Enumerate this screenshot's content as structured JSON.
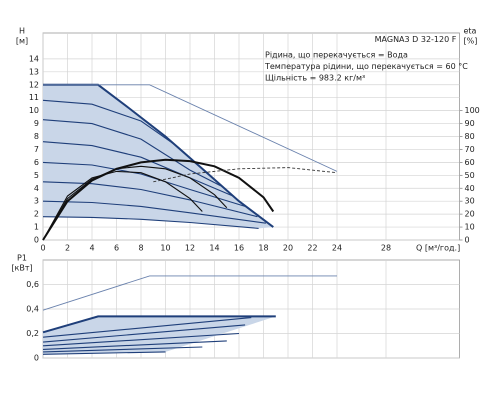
{
  "chart_data": [
    {
      "type": "line",
      "title": "MAGNA3 D 32-120 F",
      "notes": [
        "Рідина, що перекачується = Вода",
        "Температура рідини, що перекачується = 60 °C",
        "Щільність = 983.2 кг/м³"
      ],
      "ylabel": "H",
      "yunit": "[м]",
      "y2label": "eta",
      "y2unit": "[%]",
      "xlabel": "Q [м³/год.]",
      "xlim": [
        0,
        34
      ],
      "xticks": [
        0,
        2,
        4,
        6,
        8,
        10,
        12,
        14,
        16,
        18,
        20,
        22,
        24,
        28
      ],
      "ylim": [
        0,
        16
      ],
      "yticks": [
        0,
        1,
        2,
        3,
        4,
        5,
        6,
        7,
        8,
        9,
        10,
        11,
        12,
        13,
        14
      ],
      "y2lim": [
        0,
        160
      ],
      "y2ticks": [
        0,
        10,
        20,
        30,
        40,
        50,
        60,
        70,
        80,
        90,
        100
      ],
      "grid": true,
      "area_color": "#c9d6e8",
      "series": [
        {
          "color": "#1f3f7a",
          "style": "thick",
          "area": true,
          "x": [
            0,
            4.5,
            7,
            10,
            13,
            16,
            18.8
          ],
          "values": [
            12,
            12,
            10.2,
            8,
            5.5,
            3,
            1
          ]
        },
        {
          "color": "#6a82ad",
          "style": "thin",
          "x": [
            0,
            8.7,
            24
          ],
          "values": [
            12,
            12,
            5.3
          ]
        },
        {
          "color": "#1f3f7a",
          "style": "normal",
          "x": [
            0,
            4,
            8,
            11,
            13.5
          ],
          "values": [
            10.8,
            10.5,
            9.2,
            7.2,
            5.1
          ]
        },
        {
          "color": "#1f3f7a",
          "style": "normal",
          "x": [
            0,
            4,
            8,
            12,
            14.5
          ],
          "values": [
            9.3,
            9,
            7.8,
            5.4,
            4.2
          ]
        },
        {
          "color": "#1f3f7a",
          "style": "normal",
          "x": [
            0,
            4,
            8,
            12,
            15.5
          ],
          "values": [
            7.6,
            7.3,
            6.4,
            4.8,
            3.4
          ]
        },
        {
          "color": "#1f3f7a",
          "style": "normal",
          "x": [
            0,
            4,
            8,
            12,
            16.5
          ],
          "values": [
            6,
            5.8,
            5.1,
            3.9,
            2.6
          ]
        },
        {
          "color": "#1f3f7a",
          "style": "normal",
          "x": [
            0,
            4,
            8,
            12,
            17.5
          ],
          "values": [
            4.5,
            4.35,
            3.9,
            3.1,
            1.8
          ]
        },
        {
          "color": "#1f3f7a",
          "style": "normal",
          "x": [
            0,
            4,
            8,
            12,
            18.2
          ],
          "values": [
            3,
            2.9,
            2.6,
            2.1,
            1.3
          ]
        },
        {
          "color": "#1f3f7a",
          "style": "normal",
          "area_base": true,
          "x": [
            0,
            4,
            8,
            12,
            17.6
          ],
          "values": [
            1.8,
            1.75,
            1.6,
            1.35,
            0.9
          ]
        },
        {
          "color": "#111111",
          "style": "thick",
          "axis": "y2",
          "x": [
            0,
            2,
            4,
            6,
            8,
            10,
            12,
            14,
            16,
            18,
            18.8
          ],
          "values": [
            0,
            30,
            46,
            55,
            60,
            62,
            61,
            57,
            48,
            33,
            22
          ]
        },
        {
          "color": "#111111",
          "style": "normal",
          "axis": "y2",
          "x": [
            0,
            2,
            4,
            6,
            8,
            10,
            12,
            14,
            15
          ],
          "values": [
            0,
            32,
            47,
            55,
            57,
            55,
            48,
            35,
            25
          ]
        },
        {
          "color": "#111111",
          "style": "normal",
          "axis": "y2",
          "x": [
            0,
            2,
            4,
            6,
            8,
            10,
            12,
            13
          ],
          "values": [
            0,
            34,
            48,
            53,
            52,
            45,
            32,
            22
          ]
        },
        {
          "color": "#333333",
          "style": "dashed",
          "axis": "y2",
          "x": [
            9,
            12,
            16,
            20,
            24
          ],
          "values": [
            45,
            51,
            55,
            56,
            52
          ]
        }
      ]
    },
    {
      "type": "line",
      "ylabel": "P1",
      "yunit": "[кВт]",
      "xlim": [
        0,
        34
      ],
      "xticks": [
        0,
        2,
        4,
        6,
        8,
        10,
        12,
        14,
        16,
        18,
        20,
        22,
        24,
        28
      ],
      "ylim": [
        0,
        0.8
      ],
      "yticks": [
        0,
        {
          "value": 0.2,
          "label": "0,2"
        },
        {
          "value": 0.4,
          "label": "0,4"
        },
        {
          "value": 0.6,
          "label": "0,6"
        }
      ],
      "grid": true,
      "area_color": "#c9d6e8",
      "series": [
        {
          "color": "#6a82ad",
          "style": "thin",
          "x": [
            0,
            8.7,
            24
          ],
          "values": [
            0.39,
            0.67,
            0.67
          ]
        },
        {
          "color": "#1f3f7a",
          "style": "thick",
          "area": true,
          "x": [
            0,
            4.5,
            19
          ],
          "values": [
            0.21,
            0.34,
            0.34
          ]
        },
        {
          "color": "#1f3f7a",
          "style": "normal",
          "x": [
            0,
            17
          ],
          "values": [
            0.17,
            0.33
          ]
        },
        {
          "color": "#1f3f7a",
          "style": "normal",
          "x": [
            0,
            16.5
          ],
          "values": [
            0.13,
            0.27
          ]
        },
        {
          "color": "#1f3f7a",
          "style": "normal",
          "x": [
            0,
            16
          ],
          "values": [
            0.1,
            0.2
          ]
        },
        {
          "color": "#1f3f7a",
          "style": "normal",
          "x": [
            0,
            15
          ],
          "values": [
            0.07,
            0.14
          ]
        },
        {
          "color": "#1f3f7a",
          "style": "normal",
          "x": [
            0,
            13
          ],
          "values": [
            0.05,
            0.09
          ]
        },
        {
          "color": "#1f3f7a",
          "style": "normal",
          "area_base": true,
          "x": [
            0,
            10
          ],
          "values": [
            0.03,
            0.05
          ]
        }
      ]
    }
  ]
}
